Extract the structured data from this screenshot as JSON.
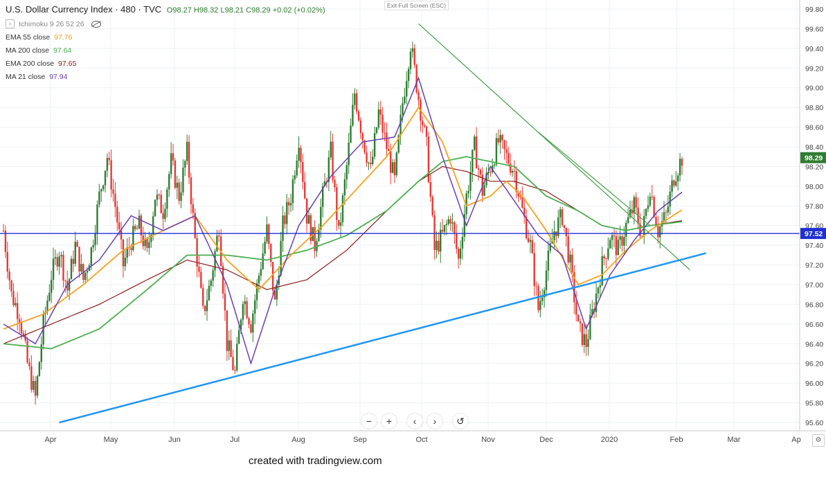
{
  "header": {
    "title": "U.S. Dollar Currency Index · 480 · TVC",
    "ohlc": "O98.27 H98.32 L98.21 C98.29 +0.02 (+0.02%)",
    "exit_fullscreen": "Exit Full Screen (ESC)"
  },
  "indicators": [
    {
      "label": "Ichimoku 9 26 52 26",
      "value": "",
      "color": "#888888"
    },
    {
      "label": "EMA 55 close",
      "value": "97.76",
      "color": "#f7a21b"
    },
    {
      "label": "MA 200 close",
      "value": "97.64",
      "color": "#4caf50"
    },
    {
      "label": "EMA 200 close",
      "value": "97.65",
      "color": "#8b1a1a"
    },
    {
      "label": "MA 21 close",
      "value": "97.94",
      "color": "#6a3fb5"
    }
  ],
  "toolbar": {
    "zoom_out": "−",
    "zoom_in": "+",
    "scroll_left": "‹",
    "scroll_right": "›",
    "reset": "↺"
  },
  "footer": {
    "credit": "created with tradingview.com"
  },
  "icons": {
    "settings": "gear-icon",
    "visibility": "eye-crossed-icon"
  },
  "chart_data": {
    "type": "candlestick",
    "symbol": "U.S. Dollar Currency Index",
    "interval": "480",
    "ylim": [
      95.6,
      99.8
    ],
    "y_ticks": [
      "99.80",
      "99.60",
      "99.40",
      "99.20",
      "99.00",
      "98.80",
      "98.60",
      "98.40",
      "98.20",
      "98.00",
      "97.80",
      "97.60",
      "97.40",
      "97.20",
      "97.00",
      "96.80",
      "96.60",
      "96.40",
      "96.20",
      "96.00",
      "95.80",
      "95.60"
    ],
    "x_ticks": [
      "Apr",
      "May",
      "Jun",
      "Jul",
      "Aug",
      "Sep",
      "Oct",
      "Nov",
      "Dec",
      "2020",
      "Feb",
      "Mar",
      "Ap"
    ],
    "last_price": "98.29",
    "horizontal_level": "97.52",
    "colors": {
      "up": "#2e7d32",
      "down": "#e53935",
      "hline": "#1e2fd6",
      "trend_blue": "#2196f3",
      "trend_green": "#43a047",
      "last_badge": "#2e7d32",
      "hline_badge": "#1e2fd6"
    },
    "price_path": [
      [
        0,
        97.55
      ],
      [
        1,
        96.9
      ],
      [
        2,
        96.7
      ],
      [
        3,
        96.2
      ],
      [
        4,
        95.85
      ],
      [
        5,
        96.6
      ],
      [
        6,
        97.1
      ],
      [
        7,
        97.35
      ],
      [
        8,
        96.95
      ],
      [
        9,
        97.4
      ],
      [
        10,
        97.05
      ],
      [
        11,
        97.35
      ],
      [
        12,
        97.9
      ],
      [
        13,
        98.3
      ],
      [
        14,
        97.8
      ],
      [
        15,
        97.2
      ],
      [
        16,
        97.45
      ],
      [
        17,
        97.6
      ],
      [
        18,
        97.3
      ],
      [
        19,
        97.9
      ],
      [
        20,
        97.75
      ],
      [
        21,
        98.25
      ],
      [
        22,
        97.9
      ],
      [
        23,
        98.35
      ],
      [
        24,
        97.45
      ],
      [
        25,
        96.7
      ],
      [
        26,
        97.05
      ],
      [
        27,
        97.6
      ],
      [
        28,
        96.4
      ],
      [
        29,
        96.1
      ],
      [
        30,
        96.9
      ],
      [
        31,
        96.6
      ],
      [
        32,
        97.1
      ],
      [
        33,
        97.55
      ],
      [
        34,
        96.8
      ],
      [
        35,
        97.6
      ],
      [
        36,
        97.9
      ],
      [
        37,
        98.5
      ],
      [
        38,
        97.7
      ],
      [
        39,
        97.4
      ],
      [
        40,
        97.9
      ],
      [
        41,
        98.35
      ],
      [
        42,
        97.5
      ],
      [
        43,
        98.2
      ],
      [
        44,
        98.95
      ],
      [
        45,
        98.5
      ],
      [
        46,
        98.15
      ],
      [
        47,
        98.75
      ],
      [
        48,
        98.4
      ],
      [
        49,
        98.05
      ],
      [
        50,
        98.85
      ],
      [
        51,
        99.45
      ],
      [
        52,
        98.9
      ],
      [
        53,
        98.4
      ],
      [
        54,
        97.35
      ],
      [
        55,
        97.5
      ],
      [
        56,
        97.7
      ],
      [
        57,
        97.25
      ],
      [
        58,
        97.9
      ],
      [
        59,
        98.4
      ],
      [
        60,
        97.95
      ],
      [
        61,
        98.2
      ],
      [
        62,
        98.45
      ],
      [
        63,
        98.3
      ],
      [
        64,
        98.15
      ],
      [
        65,
        97.75
      ],
      [
        66,
        97.4
      ],
      [
        67,
        96.75
      ],
      [
        68,
        97.15
      ],
      [
        69,
        97.55
      ],
      [
        70,
        97.7
      ],
      [
        71,
        97.2
      ],
      [
        72,
        96.55
      ],
      [
        73,
        96.4
      ],
      [
        74,
        96.8
      ],
      [
        75,
        97.2
      ],
      [
        76,
        97.5
      ],
      [
        77,
        97.35
      ],
      [
        78,
        97.6
      ],
      [
        79,
        97.8
      ],
      [
        80,
        97.5
      ],
      [
        81,
        98.0
      ],
      [
        82,
        97.55
      ],
      [
        83,
        97.7
      ],
      [
        84,
        98.1
      ],
      [
        85,
        98.29
      ]
    ],
    "ema55_path": [
      [
        0,
        96.55
      ],
      [
        5,
        96.7
      ],
      [
        10,
        97.0
      ],
      [
        15,
        97.35
      ],
      [
        20,
        97.55
      ],
      [
        24,
        97.7
      ],
      [
        28,
        97.25
      ],
      [
        32,
        96.95
      ],
      [
        36,
        97.3
      ],
      [
        40,
        97.6
      ],
      [
        44,
        97.95
      ],
      [
        48,
        98.3
      ],
      [
        52,
        98.8
      ],
      [
        55,
        98.45
      ],
      [
        58,
        97.8
      ],
      [
        61,
        97.9
      ],
      [
        63,
        98.05
      ],
      [
        65,
        97.9
      ],
      [
        68,
        97.55
      ],
      [
        72,
        97.0
      ],
      [
        75,
        97.1
      ],
      [
        78,
        97.35
      ],
      [
        81,
        97.55
      ],
      [
        85,
        97.76
      ]
    ],
    "ma200_path": [
      [
        0,
        96.4
      ],
      [
        6,
        96.35
      ],
      [
        12,
        96.55
      ],
      [
        18,
        96.95
      ],
      [
        23,
        97.3
      ],
      [
        28,
        97.3
      ],
      [
        33,
        97.25
      ],
      [
        38,
        97.35
      ],
      [
        43,
        97.5
      ],
      [
        48,
        97.75
      ],
      [
        52,
        98.05
      ],
      [
        55,
        98.25
      ],
      [
        58,
        98.3
      ],
      [
        61,
        98.25
      ],
      [
        64,
        98.2
      ],
      [
        68,
        97.9
      ],
      [
        72,
        97.75
      ],
      [
        75,
        97.6
      ],
      [
        78,
        97.55
      ],
      [
        81,
        97.6
      ],
      [
        85,
        97.64
      ]
    ],
    "ema200_path": [
      [
        0,
        96.4
      ],
      [
        6,
        96.6
      ],
      [
        12,
        96.8
      ],
      [
        18,
        97.05
      ],
      [
        23,
        97.25
      ],
      [
        28,
        97.15
      ],
      [
        33,
        96.95
      ],
      [
        38,
        97.05
      ],
      [
        43,
        97.35
      ],
      [
        48,
        97.75
      ],
      [
        52,
        98.05
      ],
      [
        55,
        98.2
      ],
      [
        58,
        98.15
      ],
      [
        61,
        98.05
      ],
      [
        64,
        98.05
      ],
      [
        68,
        97.95
      ],
      [
        72,
        97.75
      ],
      [
        75,
        97.6
      ],
      [
        78,
        97.55
      ],
      [
        81,
        97.6
      ],
      [
        85,
        97.65
      ]
    ],
    "ma21_path": [
      [
        0,
        96.6
      ],
      [
        4,
        96.4
      ],
      [
        8,
        97.0
      ],
      [
        12,
        97.25
      ],
      [
        16,
        97.7
      ],
      [
        20,
        97.55
      ],
      [
        24,
        97.7
      ],
      [
        28,
        97.0
      ],
      [
        31,
        96.2
      ],
      [
        34,
        96.95
      ],
      [
        37,
        97.6
      ],
      [
        41,
        98.1
      ],
      [
        45,
        98.45
      ],
      [
        49,
        98.5
      ],
      [
        52,
        99.1
      ],
      [
        55,
        98.3
      ],
      [
        58,
        97.6
      ],
      [
        61,
        98.2
      ],
      [
        64,
        97.85
      ],
      [
        67,
        97.5
      ],
      [
        70,
        97.3
      ],
      [
        73,
        96.55
      ],
      [
        76,
        97.1
      ],
      [
        79,
        97.45
      ],
      [
        82,
        97.75
      ],
      [
        85,
        97.94
      ]
    ],
    "trendlines": [
      {
        "name": "ascending-support",
        "from": [
          7,
          95.6
        ],
        "to": [
          88,
          97.32
        ]
      },
      {
        "name": "descending-resistance",
        "from": [
          52,
          99.65
        ],
        "to": [
          86,
          97.15
        ]
      },
      {
        "name": "descending-resistance-2",
        "from": [
          67,
          98.55
        ],
        "to": [
          81,
          97.6
        ]
      }
    ]
  }
}
